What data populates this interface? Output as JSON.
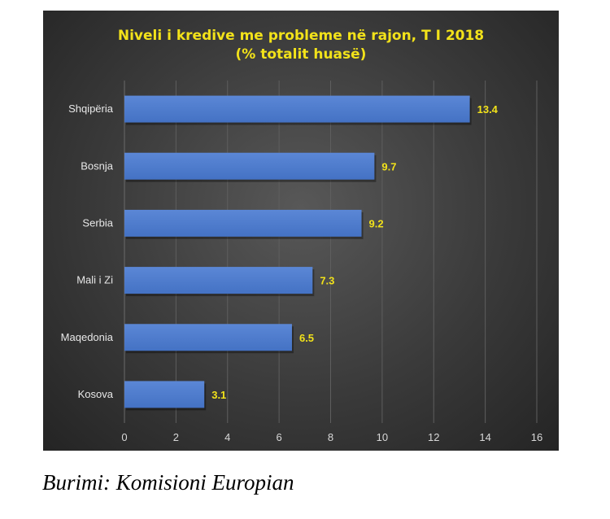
{
  "chart_data": {
    "type": "bar",
    "orientation": "horizontal",
    "title": [
      "Niveli i kredive me probleme në rajon, T I 2018",
      "(% totalit huasë)"
    ],
    "categories": [
      "Shqipëria",
      "Bosnja",
      "Serbia",
      "Mali i Zi",
      "Maqedonia",
      "Kosova"
    ],
    "values": [
      13.4,
      9.7,
      9.2,
      7.3,
      6.5,
      3.1
    ],
    "value_labels": [
      "13.4",
      "9.7",
      "9.2",
      "7.3",
      "6.5",
      "3.1"
    ],
    "xlim": [
      0,
      16
    ],
    "xticks": [
      0,
      2,
      4,
      6,
      8,
      10,
      12,
      14,
      16
    ],
    "grid": "vertical",
    "legend": "none",
    "colors": {
      "bar": "#4472c4",
      "background": "#3a3a3a",
      "title": "#f2e21a",
      "value_labels": "#f2e21a",
      "gridlines": "#5e5e5e"
    }
  },
  "source": "Burimi: Komisioni Europian"
}
